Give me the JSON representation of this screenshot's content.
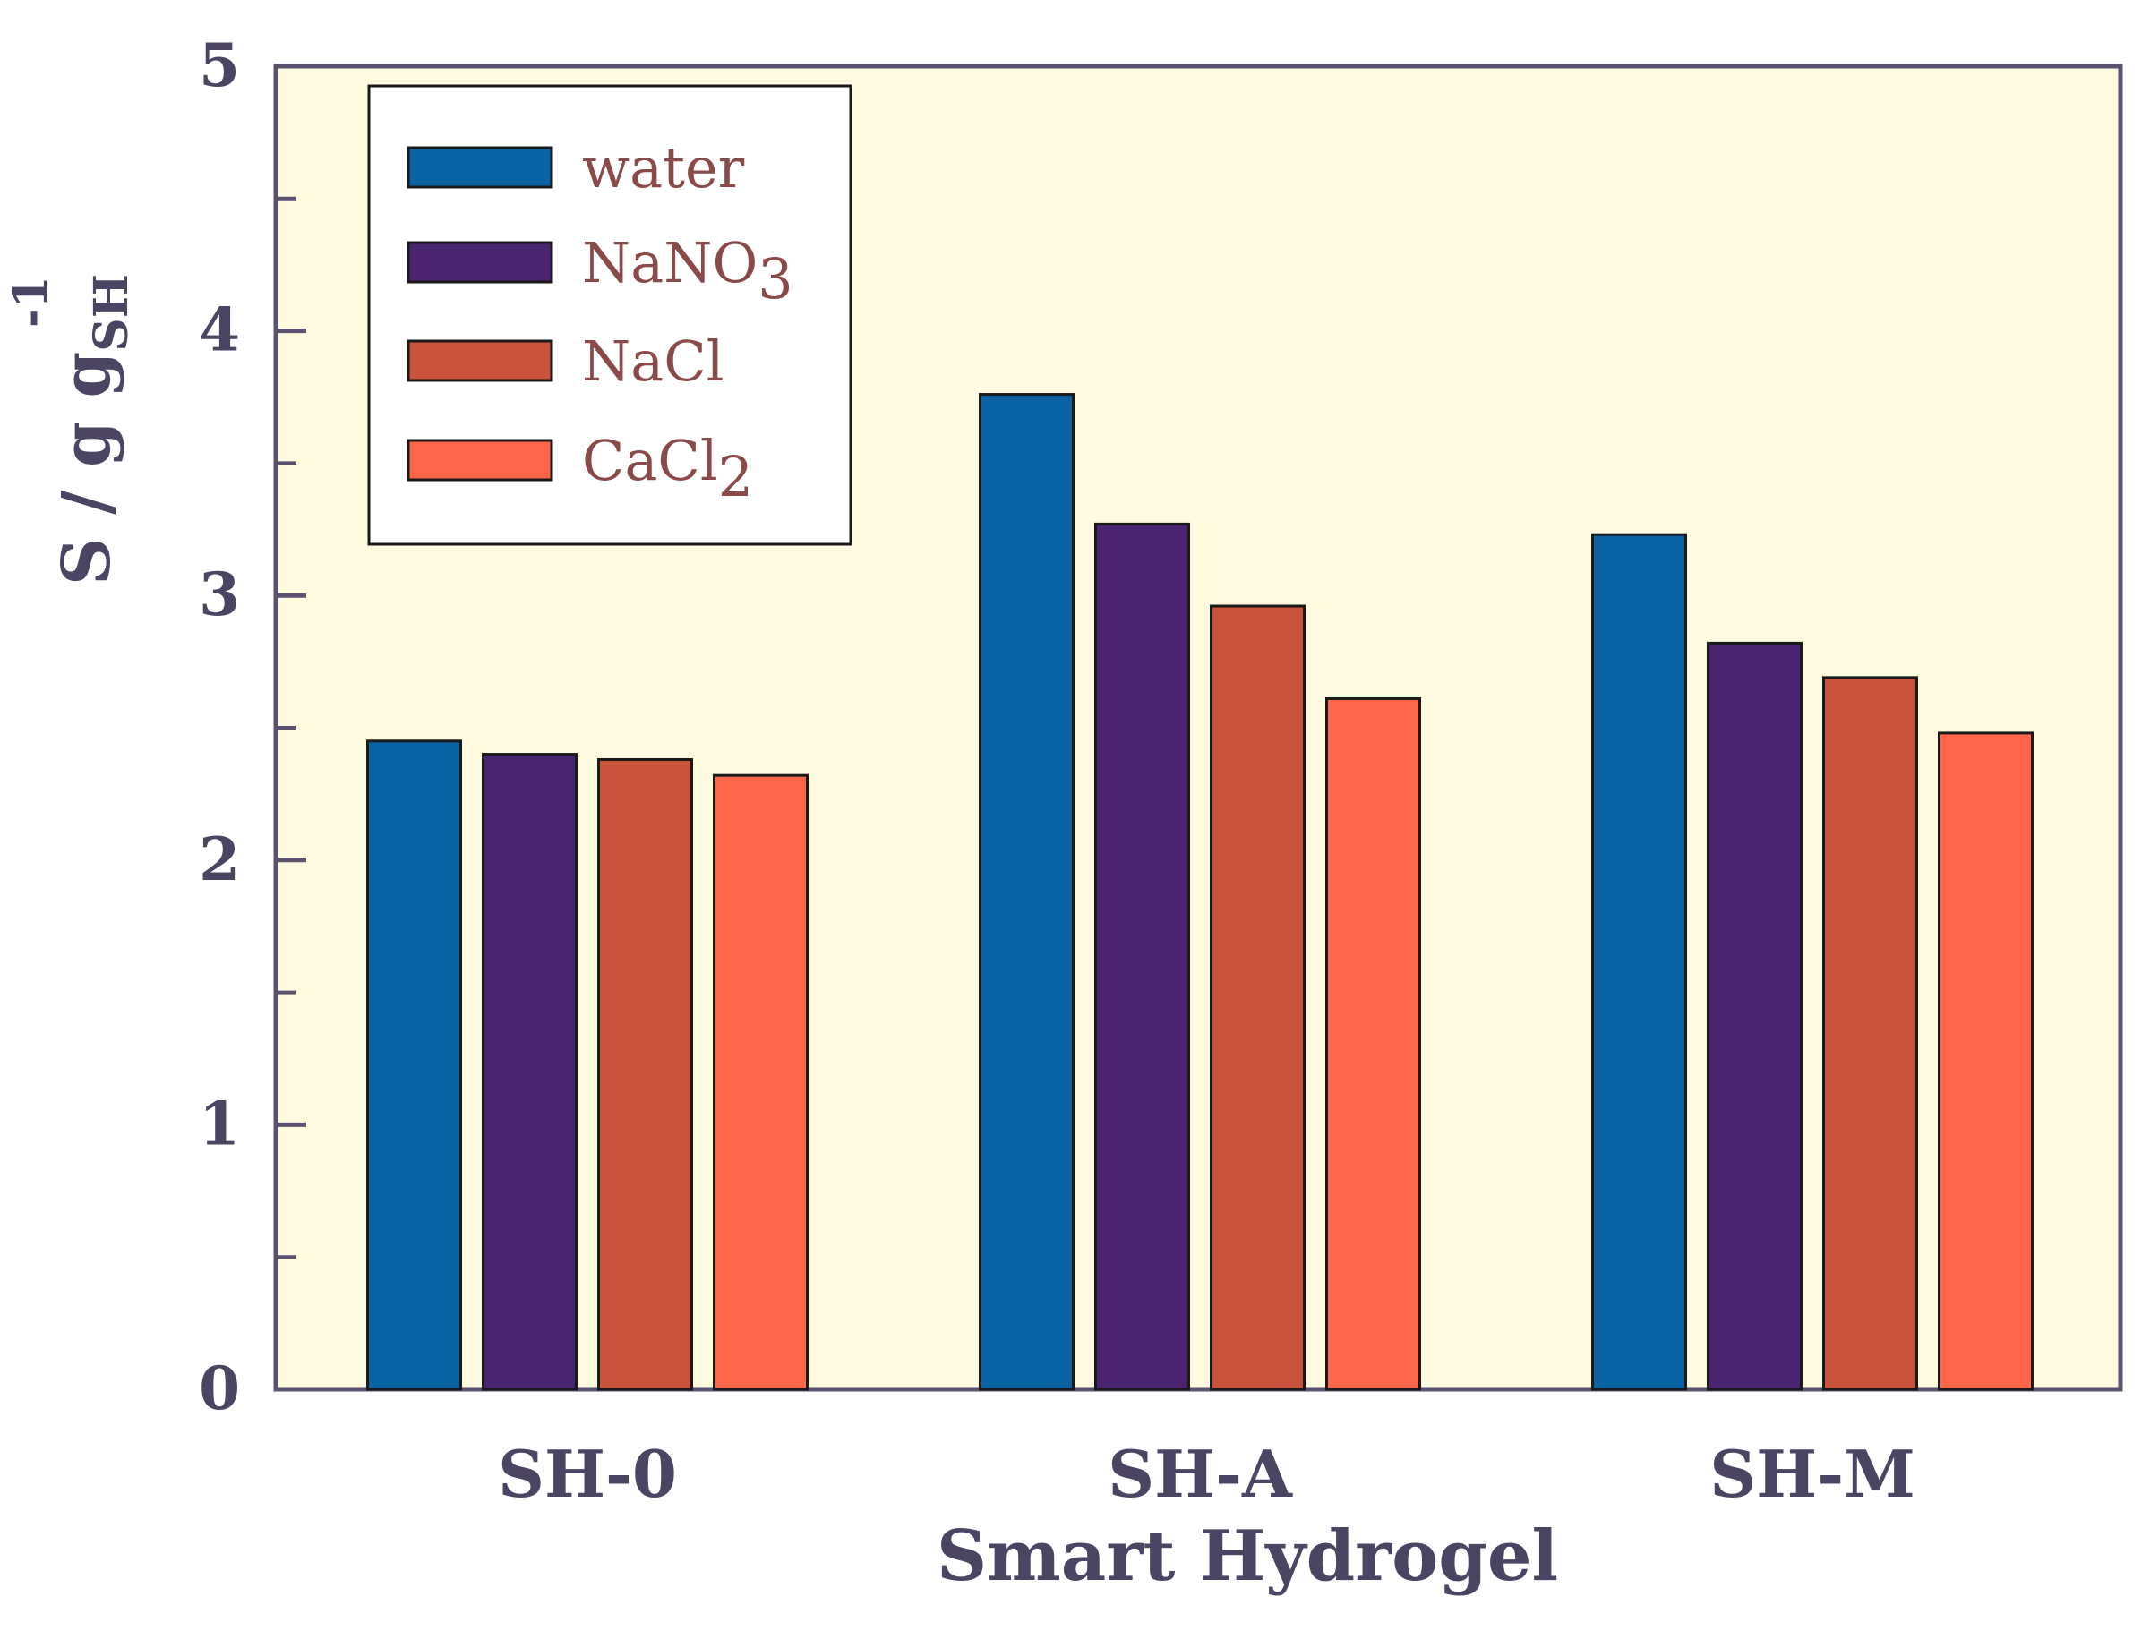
{
  "chart_data": {
    "type": "bar",
    "title": "",
    "categories": [
      "SH-0",
      "SH-A",
      "SH-M"
    ],
    "series": [
      {
        "name": "water",
        "name_sub": "",
        "color": "#0a62a3",
        "values": [
          2.45,
          3.76,
          3.23
        ]
      },
      {
        "name": "NaNO",
        "name_sub": "3",
        "color": "#4a2371",
        "values": [
          2.4,
          3.27,
          2.82
        ]
      },
      {
        "name": "NaCl",
        "name_sub": "",
        "color": "#c8523a",
        "values": [
          2.38,
          2.96,
          2.69
        ]
      },
      {
        "name": "CaCl",
        "name_sub": "2",
        "color": "#ff6548",
        "values": [
          2.32,
          2.61,
          2.48
        ]
      }
    ],
    "xlabel": "Smart Hydrogel",
    "ylabel": {
      "main": "S / g g",
      "sub": "SH",
      "sup": "-1"
    },
    "ylim": [
      0,
      5
    ],
    "yticks": [
      "0",
      "1",
      "2",
      "3",
      "4",
      "5"
    ],
    "grid": false,
    "legend": "top-left",
    "plot_background": "#fefae0",
    "axis_color": "#5b5270"
  }
}
